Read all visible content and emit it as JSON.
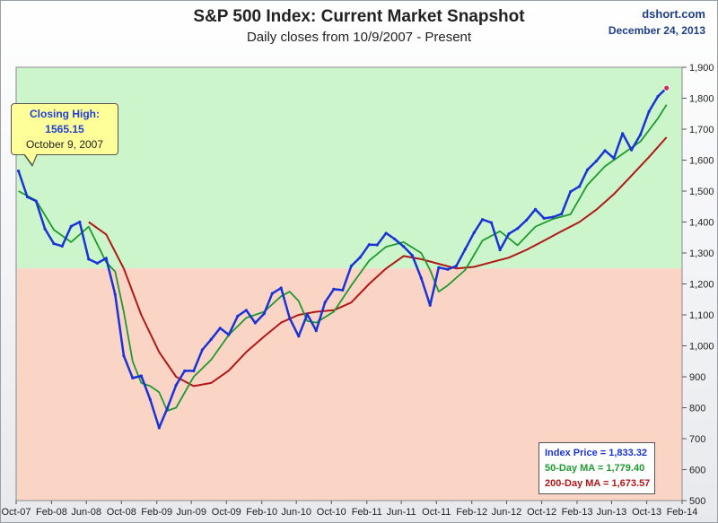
{
  "header": {
    "title": "S&P 500 Index: Current Market Snapshot",
    "subtitle": "Daily closes from 10/9/2007 - Present",
    "source": "dshort.com",
    "date": "December 24, 2013"
  },
  "callout": {
    "label": "Closing High:",
    "value": "1565.15",
    "date": "October 9, 2007"
  },
  "legend": {
    "price": "Index Price =  1,833.32",
    "ma50": "50-Day MA =  1,779.40",
    "ma200": "200-Day MA = 1,673.57"
  },
  "colors": {
    "price": "#1a33d6",
    "ma50": "#1e9a2e",
    "ma200": "#b01818",
    "zone_above": "#ccf5cc",
    "zone_below": "#fad5c6"
  },
  "chart_data": {
    "type": "line",
    "title": "S&P 500 Index: Current Market Snapshot",
    "subtitle": "Daily closes from 10/9/2007 - Present",
    "ylim": [
      500,
      1900
    ],
    "y_ticks": [
      "500",
      "600",
      "700",
      "800",
      "900",
      "1,000",
      "1,100",
      "1,200",
      "1,300",
      "1,400",
      "1,500",
      "1,600",
      "1,700",
      "1,800",
      "1,900"
    ],
    "y_tick_values": [
      500,
      600,
      700,
      800,
      900,
      1000,
      1100,
      1200,
      1300,
      1400,
      1500,
      1600,
      1700,
      1800,
      1900
    ],
    "x_ticks": [
      "Oct-07",
      "Feb-08",
      "Jun-08",
      "Oct-08",
      "Feb-09",
      "Jun-09",
      "Oct-09",
      "Feb-10",
      "Jun-10",
      "Oct-10",
      "Feb-11",
      "Jun-11",
      "Oct-11",
      "Feb-12",
      "Jun-12",
      "Oct-12",
      "Feb-13",
      "Jun-13",
      "Oct-13",
      "Feb-14"
    ],
    "zone_boundary": 1250,
    "y_axis_position": "right",
    "grid": false,
    "series": [
      {
        "name": "Index Price",
        "x": [
          "2007-10",
          "2007-11",
          "2007-12",
          "2008-01",
          "2008-02",
          "2008-03",
          "2008-04",
          "2008-05",
          "2008-06",
          "2008-07",
          "2008-08",
          "2008-09",
          "2008-10",
          "2008-11",
          "2008-12",
          "2009-01",
          "2009-02",
          "2009-03",
          "2009-04",
          "2009-05",
          "2009-06",
          "2009-07",
          "2009-08",
          "2009-09",
          "2009-10",
          "2009-11",
          "2009-12",
          "2010-01",
          "2010-02",
          "2010-03",
          "2010-04",
          "2010-05",
          "2010-06",
          "2010-07",
          "2010-08",
          "2010-09",
          "2010-10",
          "2010-11",
          "2010-12",
          "2011-01",
          "2011-02",
          "2011-03",
          "2011-04",
          "2011-05",
          "2011-06",
          "2011-07",
          "2011-08",
          "2011-09",
          "2011-10",
          "2011-11",
          "2011-12",
          "2012-01",
          "2012-02",
          "2012-03",
          "2012-04",
          "2012-05",
          "2012-06",
          "2012-07",
          "2012-08",
          "2012-09",
          "2012-10",
          "2012-11",
          "2012-12",
          "2013-01",
          "2013-02",
          "2013-03",
          "2013-04",
          "2013-05",
          "2013-06",
          "2013-07",
          "2013-08",
          "2013-09",
          "2013-10",
          "2013-11",
          "2013-12"
        ],
        "values": [
          1565,
          1481,
          1468,
          1378,
          1330,
          1322,
          1386,
          1400,
          1280,
          1267,
          1283,
          1166,
          968,
          896,
          903,
          826,
          735,
          797,
          873,
          919,
          919,
          987,
          1021,
          1057,
          1036,
          1096,
          1115,
          1074,
          1104,
          1169,
          1187,
          1089,
          1031,
          1102,
          1049,
          1141,
          1183,
          1180,
          1258,
          1286,
          1327,
          1326,
          1364,
          1345,
          1321,
          1292,
          1219,
          1131,
          1253,
          1247,
          1258,
          1312,
          1366,
          1408,
          1398,
          1310,
          1362,
          1379,
          1406,
          1441,
          1412,
          1416,
          1426,
          1498,
          1515,
          1569,
          1597,
          1631,
          1606,
          1686,
          1633,
          1682,
          1757,
          1806,
          1833
        ]
      },
      {
        "name": "50-Day MA",
        "x": [
          "2007-10",
          "2007-12",
          "2008-02",
          "2008-04",
          "2008-06",
          "2008-08",
          "2008-09",
          "2008-10",
          "2008-11",
          "2008-12",
          "2009-01",
          "2009-02",
          "2009-03",
          "2009-04",
          "2009-06",
          "2009-08",
          "2009-10",
          "2009-12",
          "2010-02",
          "2010-04",
          "2010-05",
          "2010-06",
          "2010-07",
          "2010-08",
          "2010-10",
          "2010-12",
          "2011-02",
          "2011-04",
          "2011-06",
          "2011-08",
          "2011-09",
          "2011-10",
          "2011-11",
          "2012-01",
          "2012-03",
          "2012-05",
          "2012-07",
          "2012-09",
          "2012-11",
          "2013-01",
          "2013-03",
          "2013-05",
          "2013-07",
          "2013-09",
          "2013-11",
          "2013-12"
        ],
        "values": [
          1500,
          1470,
          1375,
          1335,
          1385,
          1270,
          1240,
          1110,
          950,
          880,
          870,
          850,
          790,
          800,
          900,
          955,
          1035,
          1090,
          1110,
          1160,
          1175,
          1145,
          1080,
          1075,
          1110,
          1195,
          1275,
          1320,
          1335,
          1300,
          1245,
          1175,
          1195,
          1245,
          1340,
          1370,
          1325,
          1385,
          1410,
          1425,
          1520,
          1580,
          1620,
          1660,
          1735,
          1779
        ]
      },
      {
        "name": "200-Day MA",
        "x": [
          "2008-06",
          "2008-08",
          "2008-10",
          "2008-12",
          "2009-02",
          "2009-04",
          "2009-06",
          "2009-08",
          "2009-10",
          "2009-12",
          "2010-02",
          "2010-04",
          "2010-06",
          "2010-08",
          "2010-10",
          "2010-12",
          "2011-02",
          "2011-04",
          "2011-06",
          "2011-08",
          "2011-10",
          "2011-12",
          "2012-02",
          "2012-04",
          "2012-06",
          "2012-08",
          "2012-10",
          "2012-12",
          "2013-02",
          "2013-04",
          "2013-06",
          "2013-08",
          "2013-10",
          "2013-12"
        ],
        "values": [
          1400,
          1360,
          1250,
          1100,
          980,
          900,
          870,
          880,
          920,
          980,
          1030,
          1075,
          1100,
          1110,
          1115,
          1140,
          1200,
          1250,
          1290,
          1280,
          1265,
          1250,
          1255,
          1270,
          1285,
          1310,
          1340,
          1370,
          1400,
          1440,
          1490,
          1550,
          1610,
          1674
        ]
      }
    ]
  }
}
